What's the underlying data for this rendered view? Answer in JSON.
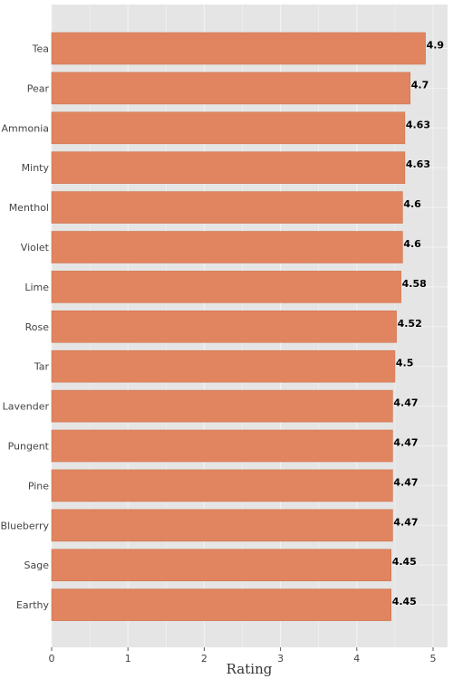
{
  "chart_data": {
    "type": "bar",
    "orientation": "horizontal",
    "categories": [
      "Tea",
      "Pear",
      "Ammonia",
      "Minty",
      "Menthol",
      "Violet",
      "Lime",
      "Rose",
      "Tar",
      "Lavender",
      "Pungent",
      "Pine",
      "Blueberry",
      "Sage",
      "Earthy"
    ],
    "values": [
      4.9,
      4.7,
      4.63,
      4.63,
      4.6,
      4.6,
      4.58,
      4.52,
      4.5,
      4.47,
      4.47,
      4.47,
      4.47,
      4.45,
      4.45
    ],
    "value_labels": [
      "4.9",
      "4.7",
      "4.63",
      "4.63",
      "4.6",
      "4.6",
      "4.58",
      "4.52",
      "4.5",
      "4.47",
      "4.47",
      "4.47",
      "4.47",
      "4.45",
      "4.45"
    ],
    "title": "",
    "xlabel": "Rating",
    "ylabel": "",
    "xlim": [
      0,
      5.05
    ],
    "xticks": [
      0,
      1,
      2,
      3,
      4,
      5
    ],
    "grid": true,
    "colors": {
      "bar": "#e08560",
      "bar_edge": "#cf7752",
      "background": "#e5e5e5",
      "grid": "#f2f2f2"
    }
  }
}
